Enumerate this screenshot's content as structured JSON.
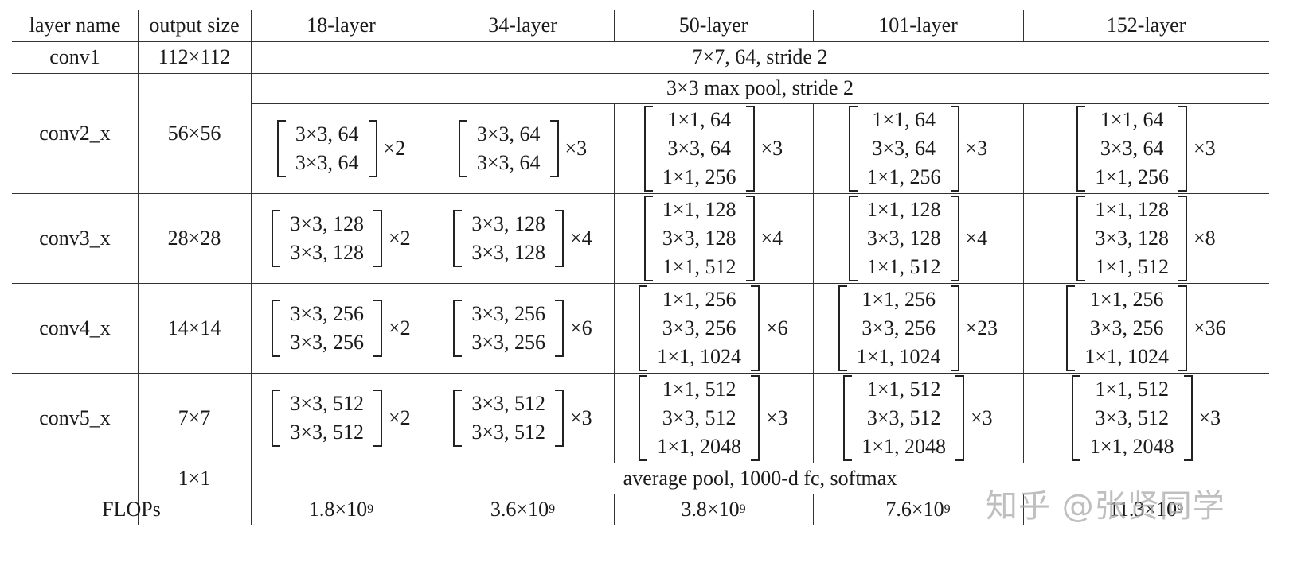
{
  "headers": [
    "layer name",
    "output size",
    "18-layer",
    "34-layer",
    "50-layer",
    "101-layer",
    "152-layer"
  ],
  "conv1": {
    "name": "conv1",
    "size": "112×112",
    "spec": "7×7, 64, stride 2"
  },
  "maxpool": {
    "spec": "3×3 max pool, stride 2"
  },
  "stages": [
    {
      "name": "conv2_x",
      "size": "56×56",
      "blocks": [
        {
          "lines": [
            "3×3, 64",
            "3×3, 64"
          ],
          "mult": "×2"
        },
        {
          "lines": [
            "3×3, 64",
            "3×3, 64"
          ],
          "mult": "×3"
        },
        {
          "lines": [
            "1×1, 64",
            "3×3, 64",
            "1×1, 256"
          ],
          "mult": "×3"
        },
        {
          "lines": [
            "1×1, 64",
            "3×3, 64",
            "1×1, 256"
          ],
          "mult": "×3"
        },
        {
          "lines": [
            "1×1, 64",
            "3×3, 64",
            "1×1, 256"
          ],
          "mult": "×3"
        }
      ]
    },
    {
      "name": "conv3_x",
      "size": "28×28",
      "blocks": [
        {
          "lines": [
            "3×3, 128",
            "3×3, 128"
          ],
          "mult": "×2"
        },
        {
          "lines": [
            "3×3, 128",
            "3×3, 128"
          ],
          "mult": "×4"
        },
        {
          "lines": [
            "1×1, 128",
            "3×3, 128",
            "1×1, 512"
          ],
          "mult": "×4"
        },
        {
          "lines": [
            "1×1, 128",
            "3×3, 128",
            "1×1, 512"
          ],
          "mult": "×4"
        },
        {
          "lines": [
            "1×1, 128",
            "3×3, 128",
            "1×1, 512"
          ],
          "mult": "×8"
        }
      ]
    },
    {
      "name": "conv4_x",
      "size": "14×14",
      "blocks": [
        {
          "lines": [
            "3×3, 256",
            "3×3, 256"
          ],
          "mult": "×2"
        },
        {
          "lines": [
            "3×3, 256",
            "3×3, 256"
          ],
          "mult": "×6"
        },
        {
          "lines": [
            "1×1, 256",
            "3×3, 256",
            "1×1, 1024"
          ],
          "mult": "×6"
        },
        {
          "lines": [
            "1×1, 256",
            "3×3, 256",
            "1×1, 1024"
          ],
          "mult": "×23"
        },
        {
          "lines": [
            "1×1, 256",
            "3×3, 256",
            "1×1, 1024"
          ],
          "mult": "×36"
        }
      ]
    },
    {
      "name": "conv5_x",
      "size": "7×7",
      "blocks": [
        {
          "lines": [
            "3×3, 512",
            "3×3, 512"
          ],
          "mult": "×2"
        },
        {
          "lines": [
            "3×3, 512",
            "3×3, 512"
          ],
          "mult": "×3"
        },
        {
          "lines": [
            "1×1, 512",
            "3×3, 512",
            "1×1, 2048"
          ],
          "mult": "×3"
        },
        {
          "lines": [
            "1×1, 512",
            "3×3, 512",
            "1×1, 2048"
          ],
          "mult": "×3"
        },
        {
          "lines": [
            "1×1, 512",
            "3×3, 512",
            "1×1, 2048"
          ],
          "mult": "×3"
        }
      ]
    }
  ],
  "final": {
    "size": "1×1",
    "spec": "average pool, 1000-d fc, softmax"
  },
  "flops": {
    "label": "FLOPs",
    "values": [
      {
        "mant": "1.8×10",
        "exp": "9"
      },
      {
        "mant": "3.6×10",
        "exp": "9"
      },
      {
        "mant": "3.8×10",
        "exp": "9"
      },
      {
        "mant": "7.6×10",
        "exp": "9"
      },
      {
        "mant": "11.3×10",
        "exp": "9"
      }
    ]
  },
  "watermark": "知乎 @张贤同学"
}
